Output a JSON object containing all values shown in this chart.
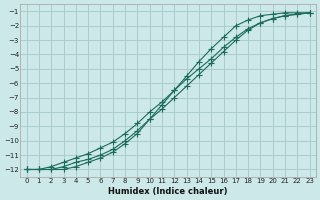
{
  "xlabel": "Humidex (Indice chaleur)",
  "bg_color": "#cce8e8",
  "grid_color": "#aacccc",
  "line_color": "#1a6b5a",
  "xlim": [
    -0.5,
    23.5
  ],
  "ylim": [
    -12.5,
    -0.5
  ],
  "xticks": [
    0,
    1,
    2,
    3,
    4,
    5,
    6,
    7,
    8,
    9,
    10,
    11,
    12,
    13,
    14,
    15,
    16,
    17,
    18,
    19,
    20,
    21,
    22,
    23
  ],
  "yticks": [
    -12,
    -11,
    -10,
    -9,
    -8,
    -7,
    -6,
    -5,
    -4,
    -3,
    -2,
    -1
  ],
  "line1_x": [
    0,
    1,
    2,
    3,
    4,
    5,
    6,
    7,
    8,
    9,
    10,
    11,
    12,
    13,
    14,
    15,
    16,
    17,
    18,
    19,
    20,
    21,
    22,
    23
  ],
  "line1_y": [
    -12,
    -12,
    -11.8,
    -11.5,
    -11.2,
    -10.9,
    -10.5,
    -10.1,
    -9.5,
    -8.8,
    -8.0,
    -7.3,
    -6.5,
    -5.7,
    -5.0,
    -4.3,
    -3.5,
    -2.8,
    -2.2,
    -1.8,
    -1.5,
    -1.3,
    -1.2,
    -1.1
  ],
  "line2_x": [
    0,
    1,
    2,
    3,
    4,
    5,
    6,
    7,
    8,
    9,
    10,
    11,
    12,
    13,
    14,
    15,
    16,
    17,
    18,
    19,
    20,
    21,
    22,
    23
  ],
  "line2_y": [
    -12,
    -12,
    -12,
    -11.8,
    -11.5,
    -11.3,
    -11.0,
    -10.6,
    -10.0,
    -9.3,
    -8.5,
    -7.8,
    -7.0,
    -6.2,
    -5.4,
    -4.6,
    -3.8,
    -3.0,
    -2.3,
    -1.8,
    -1.5,
    -1.3,
    -1.2,
    -1.1
  ],
  "line3_x": [
    0,
    1,
    2,
    3,
    4,
    5,
    6,
    7,
    8,
    9,
    10,
    11,
    12,
    13,
    14,
    15,
    16,
    17,
    18,
    19,
    20,
    21,
    22,
    23
  ],
  "line3_y": [
    -12,
    -12,
    -12,
    -12,
    -11.8,
    -11.5,
    -11.2,
    -10.8,
    -10.2,
    -9.5,
    -8.5,
    -7.5,
    -6.5,
    -5.5,
    -4.5,
    -3.6,
    -2.8,
    -2.0,
    -1.6,
    -1.3,
    -1.2,
    -1.1,
    -1.1,
    -1.1
  ]
}
